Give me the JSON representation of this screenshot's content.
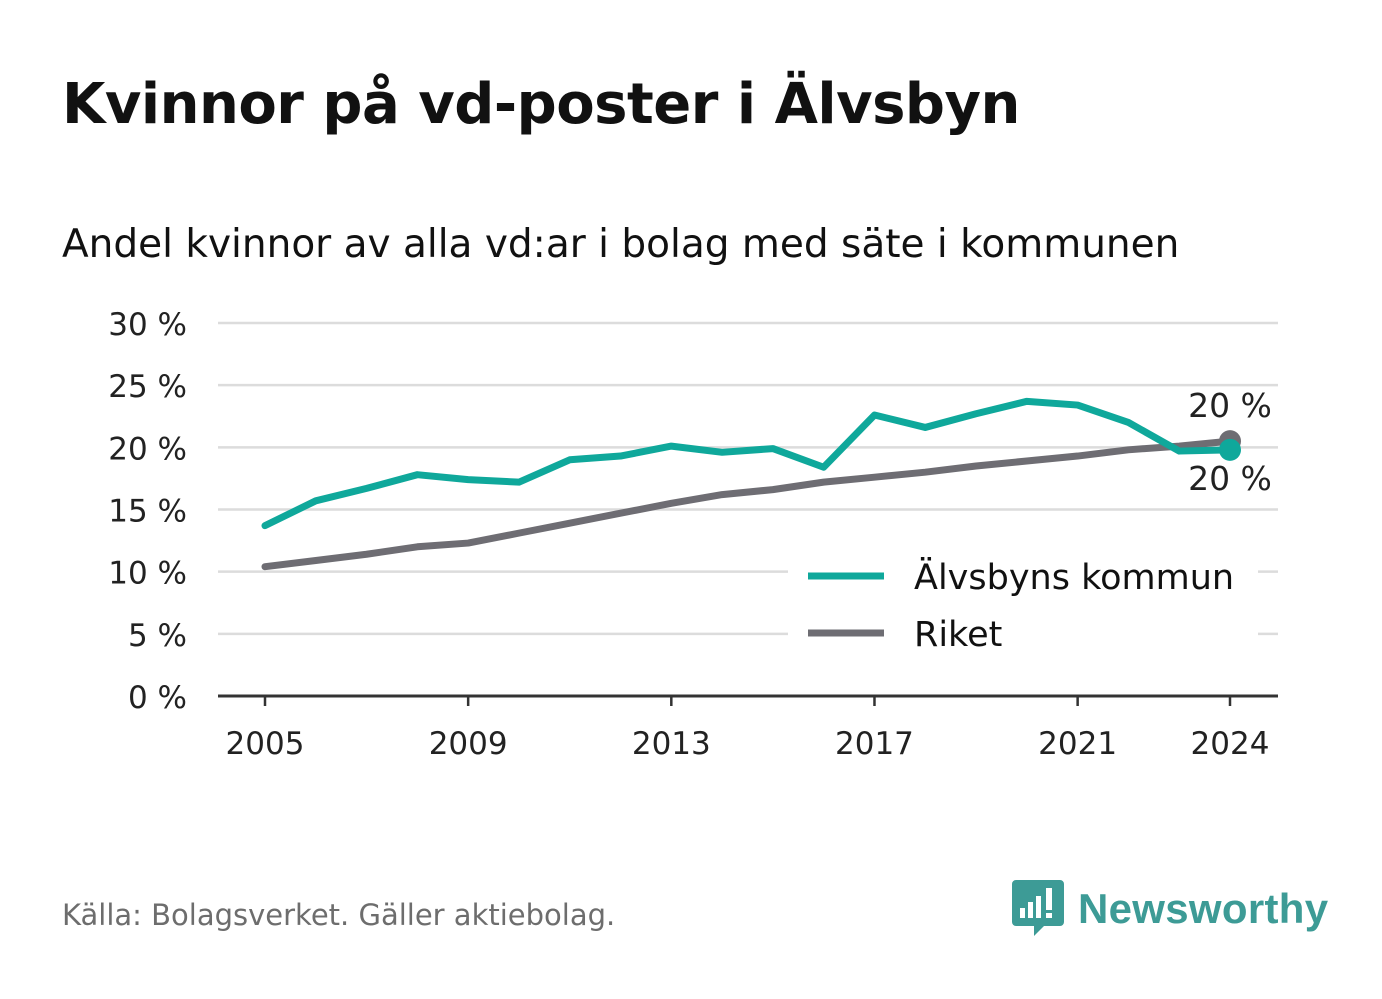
{
  "title": "Kvinnor på vd-poster i Älvsbyn",
  "subtitle": "Andel kvinnor av alla vd:ar i bolag med säte i kommunen",
  "source": "Källa: Bolagsverket. Gäller aktiebolag.",
  "brand": {
    "name": "Newsworthy",
    "color": "#3d9b96",
    "icon": "newsworthy-logo-icon"
  },
  "colors": {
    "alvsbyn": "#0fa89b",
    "riket": "#6e6d73",
    "grid": "#dcdcdc",
    "axis": "#333333"
  },
  "chart_data": {
    "type": "line",
    "x": [
      2005,
      2006,
      2007,
      2008,
      2009,
      2010,
      2011,
      2012,
      2013,
      2014,
      2015,
      2016,
      2017,
      2018,
      2019,
      2020,
      2021,
      2022,
      2023,
      2024
    ],
    "series": [
      {
        "name": "Älvsbyns kommun",
        "color": "#0fa89b",
        "values": [
          13.7,
          15.7,
          16.7,
          17.8,
          17.4,
          17.2,
          19.0,
          19.3,
          20.1,
          19.6,
          19.9,
          18.4,
          22.6,
          21.6,
          22.7,
          23.7,
          23.4,
          22.0,
          19.7,
          19.8
        ],
        "end_label": "20 %"
      },
      {
        "name": "Riket",
        "color": "#6e6d73",
        "values": [
          10.4,
          10.9,
          11.4,
          12.0,
          12.3,
          13.1,
          13.9,
          14.7,
          15.5,
          16.2,
          16.6,
          17.2,
          17.6,
          18.0,
          18.5,
          18.9,
          19.3,
          19.8,
          20.1,
          20.5
        ],
        "end_label": "20 %"
      }
    ],
    "yticks": [
      {
        "value": 0,
        "label": "0 %"
      },
      {
        "value": 5,
        "label": "5 %"
      },
      {
        "value": 10,
        "label": "10 %"
      },
      {
        "value": 15,
        "label": "15 %"
      },
      {
        "value": 20,
        "label": "20 %"
      },
      {
        "value": 25,
        "label": "25 %"
      },
      {
        "value": 30,
        "label": "30 %"
      }
    ],
    "xticks": [
      {
        "value": 2005,
        "label": "2005"
      },
      {
        "value": 2009,
        "label": "2009"
      },
      {
        "value": 2013,
        "label": "2013"
      },
      {
        "value": 2017,
        "label": "2017"
      },
      {
        "value": 2021,
        "label": "2021"
      },
      {
        "value": 2024,
        "label": "2024"
      }
    ],
    "xlabel": "",
    "ylabel": "",
    "ylim": [
      0,
      30
    ],
    "xlim": [
      2005,
      2024
    ],
    "grid": true,
    "legend": "bottom-right"
  }
}
